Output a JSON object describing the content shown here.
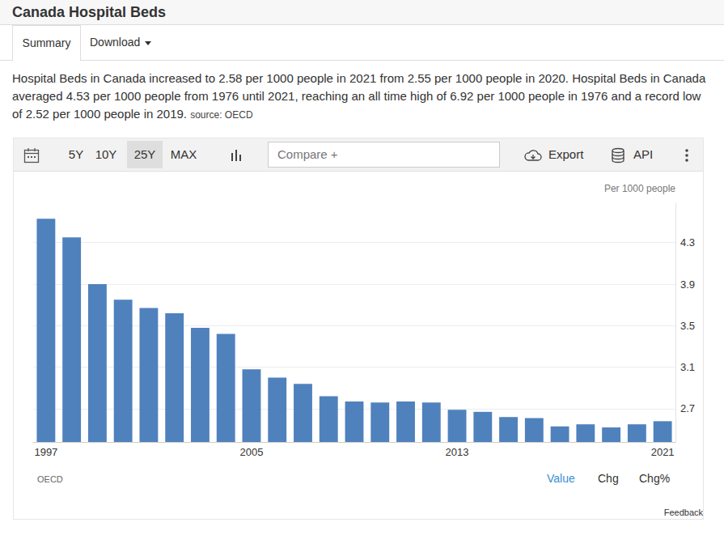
{
  "page": {
    "title": "Canada Hospital Beds",
    "tabs": [
      "Summary",
      "Download"
    ],
    "summary": "Hospital Beds in Canada increased to 2.58 per 1000 people in 2021 from 2.55 per 1000 people in 2020. Hospital Beds in Canada averaged 4.53 per 1000 people from 1976 until 2021, reaching an all time high of 6.92 per 1000 people in 1976 and a record low of 2.52 per 1000 people in 2019.",
    "source": "source: OECD",
    "ranges": [
      "5Y",
      "10Y",
      "25Y",
      "MAX"
    ],
    "compare": "Compare +",
    "actions": [
      "Export",
      "API"
    ],
    "chart_source": "OECD",
    "views": [
      "Value",
      "Chg",
      "Chg%"
    ],
    "feedback": "Feedback"
  },
  "chart_data": {
    "type": "bar",
    "y_label": "Per 1000 people",
    "categories": [
      "1997",
      null,
      null,
      null,
      null,
      null,
      null,
      null,
      "2005",
      null,
      null,
      null,
      null,
      null,
      null,
      null,
      "2013",
      null,
      null,
      null,
      null,
      null,
      null,
      null,
      "2021"
    ],
    "values": [
      4.53,
      4.35,
      3.9,
      3.75,
      3.67,
      3.62,
      3.48,
      3.42,
      3.08,
      3.0,
      2.94,
      2.82,
      2.77,
      2.76,
      2.77,
      2.76,
      2.69,
      2.67,
      2.62,
      2.61,
      2.53,
      2.55,
      2.52,
      2.55,
      2.58
    ],
    "color": "#4f81bd",
    "ylim": [
      2.38,
      4.68
    ],
    "yticks": [
      2.7,
      3.1,
      3.5,
      3.9,
      4.3
    ],
    "grid": true
  }
}
